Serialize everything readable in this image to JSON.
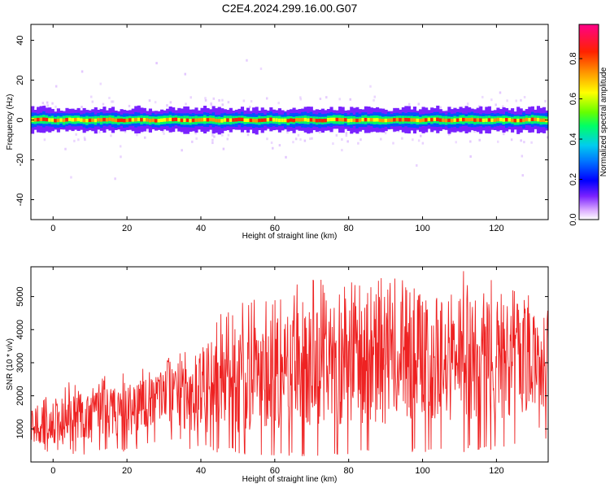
{
  "title": "C2E4.2024.299.16.00.G07",
  "chart_data": [
    {
      "type": "heatmap",
      "xlabel": "Height of straight line (km)",
      "ylabel": "Frequency (Hz)",
      "xlim": [
        -6,
        134
      ],
      "ylim": [
        -50,
        48
      ],
      "xticks": [
        0,
        20,
        40,
        60,
        80,
        100,
        120
      ],
      "yticks": [
        -40,
        -20,
        0,
        20,
        40
      ],
      "grid": false,
      "colorbar": {
        "label": "Normalized spectral amplitude",
        "range": [
          0,
          0.97
        ],
        "ticks": [
          "0.0",
          "0.2",
          "0.4",
          "0.6",
          "0.8"
        ],
        "tick_values": [
          0,
          0.2,
          0.4,
          0.6,
          0.8
        ],
        "colormap": [
          "#ffffff",
          "#d9a8ff",
          "#5500ff",
          "#0000ff",
          "#00ccff",
          "#00ff66",
          "#66ff00",
          "#ffff00",
          "#ff8800",
          "#ff0000",
          "#ff0088"
        ]
      },
      "band": {
        "center_hz": 0,
        "halfwidth_hz": 4,
        "description_level": "peak amplitude concentrated near 0 Hz across all heights"
      }
    },
    {
      "type": "line",
      "xlabel": "Height of straight line (km)",
      "ylabel": "SNR (10 * v/v)",
      "xlim": [
        -6,
        134
      ],
      "ylim": [
        0,
        5900
      ],
      "xticks": [
        0,
        20,
        40,
        60,
        80,
        100,
        120
      ],
      "yticks": [
        1000,
        2000,
        3000,
        4000,
        5000
      ],
      "grid": false,
      "series": [
        {
          "color": "#ee2222",
          "envelope": [
            {
              "x": -6,
              "min": 500,
              "max": 2000,
              "mean": 1100
            },
            {
              "x": 0,
              "min": 300,
              "max": 2300,
              "mean": 1200
            },
            {
              "x": 10,
              "min": 250,
              "max": 2600,
              "mean": 1400
            },
            {
              "x": 20,
              "min": 400,
              "max": 2700,
              "mean": 1600
            },
            {
              "x": 30,
              "min": 600,
              "max": 3000,
              "mean": 1900
            },
            {
              "x": 40,
              "min": 400,
              "max": 4200,
              "mean": 2200
            },
            {
              "x": 50,
              "min": 300,
              "max": 4900,
              "mean": 2500
            },
            {
              "x": 60,
              "min": 250,
              "max": 5000,
              "mean": 2600
            },
            {
              "x": 70,
              "min": 200,
              "max": 5700,
              "mean": 2800
            },
            {
              "x": 80,
              "min": 250,
              "max": 5400,
              "mean": 2900
            },
            {
              "x": 90,
              "min": 300,
              "max": 5800,
              "mean": 3000
            },
            {
              "x": 100,
              "min": 300,
              "max": 5300,
              "mean": 3100
            },
            {
              "x": 110,
              "min": 350,
              "max": 5800,
              "mean": 3100
            },
            {
              "x": 120,
              "min": 400,
              "max": 5600,
              "mean": 3000
            },
            {
              "x": 134,
              "min": 900,
              "max": 5000,
              "mean": 3100
            }
          ]
        }
      ]
    }
  ]
}
